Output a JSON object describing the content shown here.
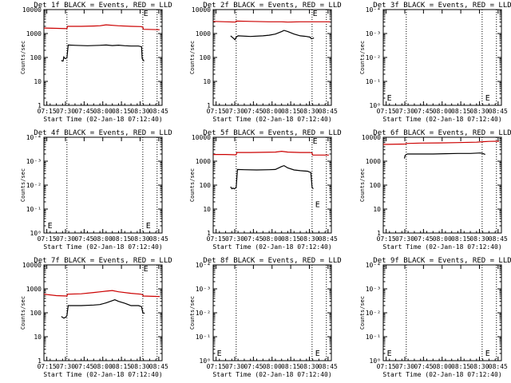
{
  "colors": {
    "events": "#000000",
    "lld": "#cc0000",
    "axes": "#000000",
    "background": "#ffffff"
  },
  "common": {
    "xlabel": "Start Time (02-Jan-18 07:12:40)",
    "ylabel": "Counts/sec",
    "x_ticks": [
      "07:15",
      "07:30",
      "07:45",
      "08:00",
      "08:15",
      "08:30",
      "08:45"
    ],
    "x_range_min": [
      0,
      95
    ],
    "x_tick_positions_min": [
      2.33,
      17.33,
      32.33,
      47.33,
      62.33,
      77.33,
      92.33
    ],
    "dotted_lines_min": [
      18.5,
      79.5,
      91.0
    ]
  },
  "chart_data": [
    {
      "type": "line",
      "title": "Det 1f BLACK = Events, RED = LLD",
      "ylim": [
        1,
        10000
      ],
      "ytick_labels": [
        "1",
        "10",
        "100",
        "1000",
        "10000"
      ],
      "series": [
        {
          "name": "Events",
          "x": [
            14,
            15,
            15.5,
            16,
            17,
            18.5,
            19.5,
            25,
            35,
            45,
            50,
            55,
            60,
            65,
            70,
            76,
            78.5,
            79,
            80.5
          ],
          "y": [
            75,
            70,
            72,
            105,
            90,
            95,
            330,
            320,
            310,
            320,
            330,
            315,
            325,
            310,
            300,
            300,
            280,
            90,
            70
          ]
        },
        {
          "name": "LLD",
          "x": [
            0,
            10,
            18.5,
            19,
            30,
            40,
            45,
            50,
            60,
            70,
            78,
            79.5,
            80,
            93
          ],
          "y": [
            1700,
            1650,
            1600,
            2000,
            2000,
            2050,
            2100,
            2300,
            2100,
            2000,
            1950,
            1850,
            1500,
            1450
          ]
        }
      ],
      "markers": [
        {
          "label": "E",
          "x": 80,
          "y": 10000
        }
      ]
    },
    {
      "type": "line",
      "title": "Det 2f BLACK = Events, RED = LLD",
      "ylim": [
        1,
        10000
      ],
      "ytick_labels": [
        "1",
        "10",
        "100",
        "1000",
        "10000"
      ],
      "series": [
        {
          "name": "Events",
          "x": [
            14,
            16,
            17.5,
            18.5,
            20,
            30,
            40,
            45,
            50,
            55,
            57,
            60,
            65,
            70,
            75,
            78,
            79,
            81
          ],
          "y": [
            800,
            650,
            550,
            700,
            800,
            750,
            800,
            850,
            950,
            1200,
            1350,
            1200,
            950,
            800,
            750,
            700,
            600,
            650
          ]
        },
        {
          "name": "LLD",
          "x": [
            0,
            18,
            18.5,
            30,
            45,
            55,
            60,
            70,
            80,
            94
          ],
          "y": [
            3200,
            3000,
            3300,
            3200,
            3100,
            3100,
            3000,
            3100,
            3100,
            3100
          ]
        }
      ],
      "markers": [
        {
          "label": "E",
          "x": 80,
          "y": 10000
        }
      ]
    },
    {
      "type": "line",
      "title": "Det 3f BLACK = Events, RED = LLD",
      "ylim": [
        1,
        10000
      ],
      "ytick_labels": [
        "10⁰",
        "10⁻¹",
        "10⁻²",
        "10⁻³",
        "10⁻⁴"
      ],
      "series": [],
      "markers": [
        {
          "label": "E",
          "x": 3,
          "y": 1.6
        },
        {
          "label": "E",
          "x": 82,
          "y": 1.6
        }
      ]
    },
    {
      "type": "line",
      "title": "Det 4f BLACK = Events, RED = LLD",
      "ylim": [
        1,
        10000
      ],
      "ytick_labels": [
        "10⁰",
        "10⁻¹",
        "10⁻²",
        "10⁻³",
        "10⁻⁴"
      ],
      "series": [],
      "markers": [
        {
          "label": "E",
          "x": 3,
          "y": 1.6
        },
        {
          "label": "E",
          "x": 82,
          "y": 1.6
        }
      ]
    },
    {
      "type": "line",
      "title": "Det 5f BLACK = Events, RED = LLD",
      "ylim": [
        1,
        10000
      ],
      "ytick_labels": [
        "1",
        "10",
        "100",
        "1000",
        "10000"
      ],
      "series": [
        {
          "name": "Events",
          "x": [
            14,
            15,
            16,
            17,
            18.5,
            19.5,
            25,
            35,
            45,
            50,
            55,
            57,
            60,
            65,
            70,
            76,
            77.5,
            78.5,
            79.5,
            80.5
          ],
          "y": [
            85,
            70,
            75,
            70,
            80,
            450,
            440,
            430,
            440,
            450,
            600,
            650,
            520,
            430,
            400,
            380,
            350,
            340,
            80,
            70
          ]
        },
        {
          "name": "LLD",
          "x": [
            0,
            10,
            18.5,
            19,
            30,
            40,
            50,
            55,
            60,
            70,
            78,
            79.5,
            80,
            93
          ],
          "y": [
            1900,
            1900,
            1850,
            2300,
            2300,
            2350,
            2400,
            2600,
            2400,
            2300,
            2300,
            2200,
            1800,
            1800
          ]
        }
      ],
      "markers": [
        {
          "label": "E",
          "x": 80,
          "y": 10000
        },
        {
          "label": "E",
          "x": 82,
          "y": 12
        }
      ]
    },
    {
      "type": "line",
      "title": "Det 6f BLACK = Events, RED = LLD",
      "ylim": [
        1,
        10000
      ],
      "ytick_labels": [
        "1",
        "10",
        "100",
        "1000",
        "10000"
      ],
      "series": [
        {
          "name": "Events",
          "x": [
            17,
            17.5,
            18.5,
            19.5,
            30,
            40,
            50,
            60,
            70,
            78,
            80,
            82
          ],
          "y": [
            1300,
            1700,
            1900,
            2000,
            2000,
            2000,
            2050,
            2100,
            2100,
            2200,
            2100,
            1900
          ]
        },
        {
          "name": "LLD",
          "x": [
            0,
            18,
            18.5,
            30,
            45,
            60,
            75,
            80,
            85,
            93
          ],
          "y": [
            5000,
            5200,
            5500,
            5700,
            5800,
            6000,
            6200,
            6500,
            6700,
            6800
          ]
        }
      ],
      "markers": []
    },
    {
      "type": "line",
      "title": "Det 7f BLACK = Events, RED = LLD",
      "ylim": [
        1,
        10000
      ],
      "ytick_labels": [
        "1",
        "10",
        "100",
        "1000",
        "10000"
      ],
      "series": [
        {
          "name": "Events",
          "x": [
            14,
            16,
            17.5,
            18.5,
            19.5,
            30,
            40,
            45,
            50,
            55,
            57,
            60,
            65,
            70,
            76,
            78.5,
            79.5,
            81
          ],
          "y": [
            70,
            60,
            65,
            75,
            200,
            200,
            210,
            220,
            260,
            320,
            350,
            300,
            250,
            200,
            200,
            180,
            100,
            95
          ]
        },
        {
          "name": "LLD",
          "x": [
            0,
            10,
            18.5,
            19,
            30,
            40,
            50,
            55,
            60,
            70,
            78,
            79.5,
            80,
            93
          ],
          "y": [
            600,
            520,
            500,
            600,
            620,
            700,
            800,
            850,
            750,
            650,
            600,
            560,
            500,
            480
          ]
        }
      ],
      "markers": [
        {
          "label": "E",
          "x": 80,
          "y": 10000
        }
      ]
    },
    {
      "type": "line",
      "title": "Det 8f BLACK = Events, RED = LLD",
      "ylim": [
        1,
        10000
      ],
      "ytick_labels": [
        "10⁰",
        "10⁻¹",
        "10⁻²",
        "10⁻³",
        "10⁻⁴"
      ],
      "series": [],
      "markers": [
        {
          "label": "E",
          "x": 3,
          "y": 1.6
        },
        {
          "label": "E",
          "x": 82,
          "y": 1.6
        }
      ]
    },
    {
      "type": "line",
      "title": "Det 9f BLACK = Events, RED = LLD",
      "ylim": [
        1,
        10000
      ],
      "ytick_labels": [
        "10⁰",
        "10⁻¹",
        "10⁻²",
        "10⁻³",
        "10⁻⁴"
      ],
      "series": [],
      "markers": [
        {
          "label": "E",
          "x": 3,
          "y": 1.6
        },
        {
          "label": "E",
          "x": 82,
          "y": 1.6
        }
      ]
    }
  ]
}
